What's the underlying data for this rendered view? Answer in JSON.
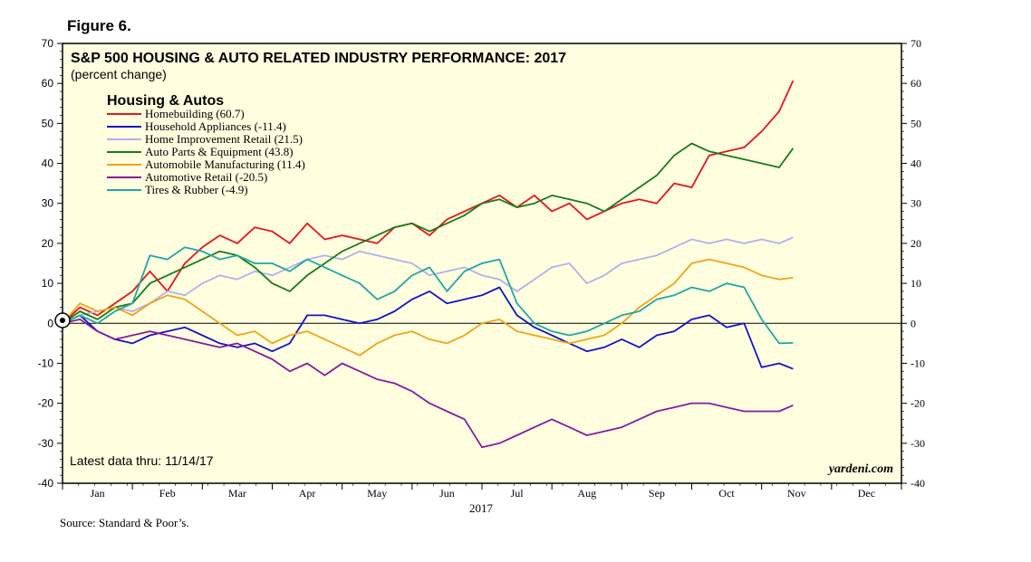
{
  "figure_label": "Figure 6.",
  "source": "Source: Standard & Poor’s.",
  "watermark": "yardeni.com",
  "latest_note": "Latest data thru: 11/14/17",
  "chart_data": {
    "type": "line",
    "title": "S&P 500 HOUSING & AUTO RELATED INDUSTRY PERFORMANCE: 2017",
    "subtitle": "(percent change)",
    "legend_title": "Housing & Autos",
    "legend_position": "top-left",
    "xlabel": "2017",
    "ylabel": "",
    "xlim": [
      0,
      12
    ],
    "ylim": [
      -40,
      70
    ],
    "y_ticks": [
      -40,
      -30,
      -20,
      -10,
      0,
      10,
      20,
      30,
      40,
      50,
      60,
      70
    ],
    "y_tick_labels": [
      "-40",
      "-30",
      "-20",
      "-10",
      "0",
      "10",
      "20",
      "30",
      "40",
      "50",
      "60",
      "70"
    ],
    "x_tick_labels": [
      "Jan",
      "Feb",
      "Mar",
      "Apr",
      "May",
      "Jun",
      "Jul",
      "Aug",
      "Sep",
      "Oct",
      "Nov",
      "Dec"
    ],
    "x_unit": "months elapsed since Jan 1",
    "series": [
      {
        "name": "Homebuilding (60.7)",
        "color": "#e8141b",
        "x": [
          0,
          0.25,
          0.5,
          0.75,
          1,
          1.25,
          1.5,
          1.75,
          2,
          2.25,
          2.5,
          2.75,
          3,
          3.25,
          3.5,
          3.75,
          4,
          4.25,
          4.5,
          4.75,
          5,
          5.25,
          5.5,
          5.75,
          6,
          6.25,
          6.5,
          6.75,
          7,
          7.25,
          7.5,
          7.75,
          8,
          8.25,
          8.5,
          8.75,
          9,
          9.25,
          9.5,
          9.75,
          10,
          10.25,
          10.45
        ],
        "y": [
          0,
          4,
          2,
          5,
          8,
          13,
          8,
          15,
          19,
          22,
          20,
          24,
          23,
          20,
          25,
          21,
          22,
          21,
          20,
          24,
          25,
          22,
          26,
          28,
          30,
          32,
          29,
          32,
          28,
          30,
          26,
          28,
          30,
          31,
          30,
          35,
          34,
          42,
          43,
          44,
          48,
          53,
          60.7
        ]
      },
      {
        "name": "Household Appliances (-11.4)",
        "color": "#1414c8",
        "x": [
          0,
          0.25,
          0.5,
          0.75,
          1,
          1.25,
          1.5,
          1.75,
          2,
          2.25,
          2.5,
          2.75,
          3,
          3.25,
          3.5,
          3.75,
          4,
          4.25,
          4.5,
          4.75,
          5,
          5.25,
          5.5,
          5.75,
          6,
          6.25,
          6.5,
          6.75,
          7,
          7.25,
          7.5,
          7.75,
          8,
          8.25,
          8.5,
          8.75,
          9,
          9.25,
          9.5,
          9.75,
          10,
          10.25,
          10.45
        ],
        "y": [
          0,
          2,
          -2,
          -4,
          -5,
          -3,
          -2,
          -1,
          -3,
          -5,
          -6,
          -5,
          -7,
          -5,
          2,
          2,
          1,
          0,
          1,
          3,
          6,
          8,
          5,
          6,
          7,
          9,
          2,
          -1,
          -3,
          -5,
          -7,
          -6,
          -4,
          -6,
          -3,
          -2,
          1,
          2,
          -1,
          0,
          -11,
          -10,
          -11.4
        ]
      },
      {
        "name": "Home Improvement Retail (21.5)",
        "color": "#b0b0f0",
        "x": [
          0,
          0.25,
          0.5,
          0.75,
          1,
          1.25,
          1.5,
          1.75,
          2,
          2.25,
          2.5,
          2.75,
          3,
          3.25,
          3.5,
          3.75,
          4,
          4.25,
          4.5,
          4.75,
          5,
          5.25,
          5.5,
          5.75,
          6,
          6.25,
          6.5,
          6.75,
          7,
          7.25,
          7.5,
          7.75,
          8,
          8.25,
          8.5,
          8.75,
          9,
          9.25,
          9.5,
          9.75,
          10,
          10.25,
          10.45
        ],
        "y": [
          0,
          2,
          3,
          4,
          3,
          5,
          8,
          7,
          10,
          12,
          11,
          13,
          12,
          14,
          16,
          17,
          16,
          18,
          17,
          16,
          15,
          12,
          13,
          14,
          12,
          11,
          8,
          11,
          14,
          15,
          10,
          12,
          15,
          16,
          17,
          19,
          21,
          20,
          21,
          20,
          21,
          20,
          21.5
        ]
      },
      {
        "name": "Auto Parts & Equipment (43.8)",
        "color": "#1a7a1a",
        "x": [
          0,
          0.25,
          0.5,
          0.75,
          1,
          1.25,
          1.5,
          1.75,
          2,
          2.25,
          2.5,
          2.75,
          3,
          3.25,
          3.5,
          3.75,
          4,
          4.25,
          4.5,
          4.75,
          5,
          5.25,
          5.5,
          5.75,
          6,
          6.25,
          6.5,
          6.75,
          7,
          7.25,
          7.5,
          7.75,
          8,
          8.25,
          8.5,
          8.75,
          9,
          9.25,
          9.5,
          9.75,
          10,
          10.25,
          10.45
        ],
        "y": [
          0,
          3,
          1,
          4,
          5,
          10,
          12,
          14,
          16,
          18,
          17,
          14,
          10,
          8,
          12,
          15,
          18,
          20,
          22,
          24,
          25,
          23,
          25,
          27,
          30,
          31,
          29,
          30,
          32,
          31,
          30,
          28,
          31,
          34,
          37,
          42,
          45,
          43,
          42,
          41,
          40,
          39,
          43.8
        ]
      },
      {
        "name": "Automobile Manufacturing (11.4)",
        "color": "#f3a21c",
        "x": [
          0,
          0.25,
          0.5,
          0.75,
          1,
          1.25,
          1.5,
          1.75,
          2,
          2.25,
          2.5,
          2.75,
          3,
          3.25,
          3.5,
          3.75,
          4,
          4.25,
          4.5,
          4.75,
          5,
          5.25,
          5.5,
          5.75,
          6,
          6.25,
          6.5,
          6.75,
          7,
          7.25,
          7.5,
          7.75,
          8,
          8.25,
          8.5,
          8.75,
          9,
          9.25,
          9.5,
          9.75,
          10,
          10.25,
          10.45
        ],
        "y": [
          0,
          5,
          3,
          4,
          2,
          5,
          7,
          6,
          3,
          0,
          -3,
          -2,
          -5,
          -3,
          -2,
          -4,
          -6,
          -8,
          -5,
          -3,
          -2,
          -4,
          -5,
          -3,
          0,
          1,
          -2,
          -3,
          -4,
          -5,
          -4,
          -3,
          0,
          4,
          7,
          10,
          15,
          16,
          15,
          14,
          12,
          11,
          11.4
        ]
      },
      {
        "name": "Automotive Retail (-20.5)",
        "color": "#8a1a9c",
        "x": [
          0,
          0.25,
          0.5,
          0.75,
          1,
          1.25,
          1.5,
          1.75,
          2,
          2.25,
          2.5,
          2.75,
          3,
          3.25,
          3.5,
          3.75,
          4,
          4.25,
          4.5,
          4.75,
          5,
          5.25,
          5.5,
          5.75,
          6,
          6.25,
          6.5,
          6.75,
          7,
          7.25,
          7.5,
          7.75,
          8,
          8.25,
          8.5,
          8.75,
          9,
          9.25,
          9.5,
          9.75,
          10,
          10.25,
          10.45
        ],
        "y": [
          0,
          1,
          -2,
          -4,
          -3,
          -2,
          -3,
          -4,
          -5,
          -6,
          -5,
          -7,
          -9,
          -12,
          -10,
          -13,
          -10,
          -12,
          -14,
          -15,
          -17,
          -20,
          -22,
          -24,
          -31,
          -30,
          -28,
          -26,
          -24,
          -26,
          -28,
          -27,
          -26,
          -24,
          -22,
          -21,
          -20,
          -20,
          -21,
          -22,
          -22,
          -22,
          -20.5
        ]
      },
      {
        "name": "Tires & Rubber (-4.9)",
        "color": "#22a5a5",
        "x": [
          0,
          0.25,
          0.5,
          0.75,
          1,
          1.25,
          1.5,
          1.75,
          2,
          2.25,
          2.5,
          2.75,
          3,
          3.25,
          3.5,
          3.75,
          4,
          4.25,
          4.5,
          4.75,
          5,
          5.25,
          5.5,
          5.75,
          6,
          6.25,
          6.5,
          6.75,
          7,
          7.25,
          7.5,
          7.75,
          8,
          8.25,
          8.5,
          8.75,
          9,
          9.25,
          9.5,
          9.75,
          10,
          10.25,
          10.45
        ],
        "y": [
          0,
          2,
          0,
          3,
          5,
          17,
          16,
          19,
          18,
          16,
          17,
          15,
          15,
          13,
          16,
          14,
          12,
          10,
          6,
          8,
          12,
          14,
          8,
          13,
          15,
          16,
          5,
          0,
          -2,
          -3,
          -2,
          0,
          2,
          3,
          6,
          7,
          9,
          8,
          10,
          9,
          1,
          -5,
          -4.9
        ]
      }
    ]
  }
}
